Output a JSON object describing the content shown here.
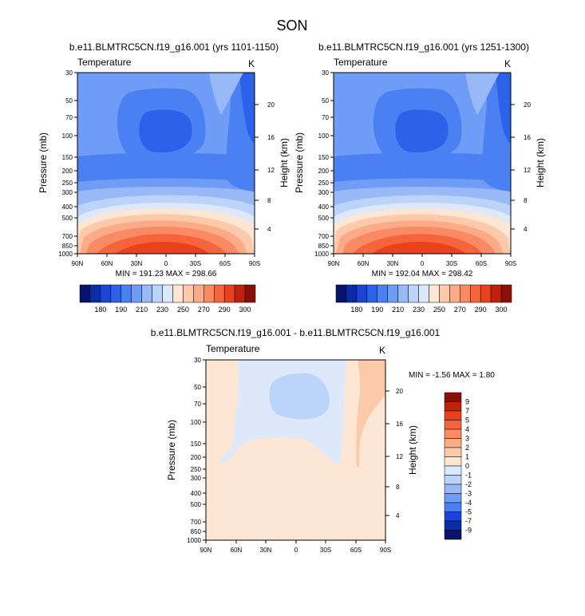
{
  "figure_title": "SON",
  "chart_data": [
    {
      "type": "heatmap",
      "title": "b.e11.BLMTRC5CN.f19_g16.001 (yrs 1101-1150)",
      "left_label": "Temperature",
      "right_label": "K",
      "xlabel": "",
      "ylabel": "Pressure (mb)",
      "y2label": "Height (km)",
      "x_ticks": [
        "90N",
        "60N",
        "30N",
        "0",
        "30S",
        "60S",
        "90S"
      ],
      "y_ticks": [
        "30",
        "50",
        "70",
        "100",
        "150",
        "200",
        "250",
        "300",
        "400",
        "500",
        "700",
        "850",
        "1000"
      ],
      "y2_ticks": [
        "20",
        "16",
        "12",
        "8",
        "4"
      ],
      "stats_text": "MIN = 191.23  MAX = 298.66",
      "min": 191.23,
      "max": 298.66,
      "colorbar_labels": [
        "180",
        "190",
        "210",
        "230",
        "250",
        "270",
        "290",
        "300"
      ]
    },
    {
      "type": "heatmap",
      "title": "b.e11.BLMTRC5CN.f19_g16.001 (yrs 1251-1300)",
      "left_label": "Temperature",
      "right_label": "K",
      "xlabel": "",
      "ylabel": "Pressure (mb)",
      "y2label": "Height (km)",
      "x_ticks": [
        "90N",
        "60N",
        "30N",
        "0",
        "30S",
        "60S",
        "90S"
      ],
      "y_ticks": [
        "30",
        "50",
        "70",
        "100",
        "150",
        "200",
        "250",
        "300",
        "400",
        "500",
        "700",
        "850",
        "1000"
      ],
      "y2_ticks": [
        "20",
        "16",
        "12",
        "8",
        "4"
      ],
      "stats_text": "MIN = 192.04  MAX = 298.42",
      "min": 192.04,
      "max": 298.42,
      "colorbar_labels": [
        "180",
        "190",
        "210",
        "230",
        "250",
        "270",
        "290",
        "300"
      ]
    },
    {
      "type": "heatmap",
      "title": "b.e11.BLMTRC5CN.f19_g16.001 - b.e11.BLMTRC5CN.f19_g16.001",
      "left_label": "Temperature",
      "right_label": "K",
      "xlabel": "",
      "ylabel": "Pressure (mb)",
      "y2label": "Height (km)",
      "x_ticks": [
        "90N",
        "60N",
        "30N",
        "0",
        "30S",
        "60S",
        "90S"
      ],
      "y_ticks": [
        "30",
        "50",
        "70",
        "100",
        "150",
        "200",
        "250",
        "300",
        "400",
        "500",
        "700",
        "850",
        "1000"
      ],
      "y2_ticks": [
        "20",
        "16",
        "12",
        "8",
        "4"
      ],
      "stats_text": "MIN = -1.56  MAX =  1.80",
      "min": -1.56,
      "max": 1.8,
      "colorbar_labels": [
        "9",
        "7",
        "5",
        "4",
        "3",
        "2",
        "1",
        "0",
        "-1",
        "-2",
        "-3",
        "-4",
        "-5",
        "-7",
        "-9"
      ]
    }
  ],
  "colors": {
    "temp_scale": [
      "#07136e",
      "#0a2ca6",
      "#1a45d6",
      "#2c62ea",
      "#4a80f2",
      "#6f9cf6",
      "#98b8f8",
      "#bcd3fa",
      "#dde8fb",
      "#fde6d4",
      "#fcc9ab",
      "#fbab87",
      "#f98a63",
      "#f5643a",
      "#e8411c",
      "#bf2310",
      "#8a0f08"
    ],
    "diff_scale": [
      "#8a0f08",
      "#bf2310",
      "#e8411c",
      "#f5643a",
      "#f98a63",
      "#fbab87",
      "#fcc9ab",
      "#fde6d4",
      "#dde8fb",
      "#bcd3fa",
      "#98b8f8",
      "#6f9cf6",
      "#4a80f2",
      "#1a45d6",
      "#0a2ca6",
      "#07136e"
    ]
  }
}
